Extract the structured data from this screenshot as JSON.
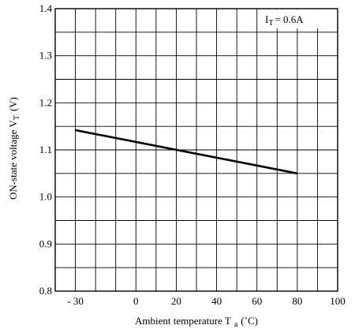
{
  "chart_data": {
    "type": "line",
    "xlabel": {
      "main": "Ambient temperature T",
      "sub": "a",
      "unit": "(˚C)"
    },
    "ylabel": {
      "main": "ON-state voltage V",
      "sub": "T",
      "unit": "(V)"
    },
    "annotation": {
      "main": "I",
      "sub": "T",
      "rest": "= 0.6A"
    },
    "xlim": [
      -40,
      100
    ],
    "ylim": [
      0.8,
      1.4
    ],
    "x_ticks": [
      {
        "value": -30,
        "label": "- 30"
      },
      {
        "value": 0,
        "label": "0"
      },
      {
        "value": 20,
        "label": "20"
      },
      {
        "value": 40,
        "label": "40"
      },
      {
        "value": 60,
        "label": "60"
      },
      {
        "value": 80,
        "label": "80"
      },
      {
        "value": 100,
        "label": "100"
      }
    ],
    "y_ticks": [
      {
        "value": 0.8,
        "label": "0.8"
      },
      {
        "value": 0.9,
        "label": "0.9"
      },
      {
        "value": 1.0,
        "label": "1.0"
      },
      {
        "value": 1.1,
        "label": "1.1"
      },
      {
        "value": 1.2,
        "label": "1.2"
      },
      {
        "value": 1.3,
        "label": "1.3"
      },
      {
        "value": 1.4,
        "label": "1.4"
      }
    ],
    "grid": true,
    "series": [
      {
        "x": [
          -30,
          80
        ],
        "y": [
          1.142,
          1.05
        ],
        "color": "#000000"
      }
    ]
  }
}
